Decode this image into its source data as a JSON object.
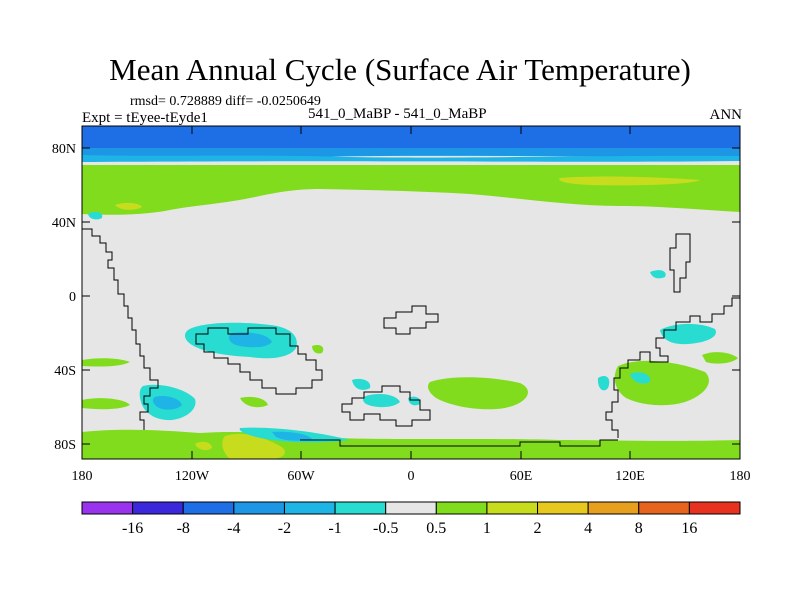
{
  "title": "Mean Annual Cycle (Surface Air Temperature)",
  "stats": "rmsd= 0.728889 diff= -0.0250649",
  "experiment": "Expt = tEyee-tEyde1",
  "center_label": "541_0_MaBP - 541_0_MaBP",
  "season": "ANN",
  "colors": {
    "background": "#e6e6e6",
    "coastline": "#000000",
    "levels": [
      "#9933ee",
      "#3c28dc",
      "#1e6ee6",
      "#1e96e6",
      "#1eb4e6",
      "#28dcd2",
      "#e6e6e6",
      "#82dc1e",
      "#c8dc1e",
      "#e6c81e",
      "#e6a01e",
      "#e6641e",
      "#e6321e"
    ]
  },
  "map": {
    "y_ticks": [
      "80N",
      "40N",
      "0",
      "40S",
      "80S"
    ],
    "x_ticks": [
      "180",
      "120W",
      "60W",
      "0",
      "60E",
      "120E",
      "180"
    ]
  },
  "colorbar": {
    "labels": [
      "-16",
      "-8",
      "-4",
      "-2",
      "-1",
      "-0.5",
      "0.5",
      "1",
      "2",
      "4",
      "8",
      "16"
    ]
  }
}
